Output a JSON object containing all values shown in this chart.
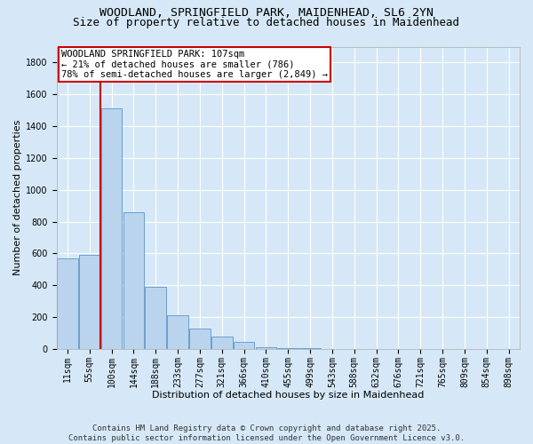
{
  "title_line1": "WOODLAND, SPRINGFIELD PARK, MAIDENHEAD, SL6 2YN",
  "title_line2": "Size of property relative to detached houses in Maidenhead",
  "xlabel": "Distribution of detached houses by size in Maidenhead",
  "ylabel": "Number of detached properties",
  "bar_color": "#bad4ee",
  "bar_edge_color": "#6b9fcc",
  "background_color": "#d6e8f7",
  "grid_color": "#ffffff",
  "vline_color": "#cc0000",
  "vline_x": 2,
  "annotation_text": "WOODLAND SPRINGFIELD PARK: 107sqm\n← 21% of detached houses are smaller (786)\n78% of semi-detached houses are larger (2,849) →",
  "annotation_box_color": "#ffffff",
  "annotation_box_edge": "#cc0000",
  "categories": [
    "11sqm",
    "55sqm",
    "100sqm",
    "144sqm",
    "188sqm",
    "233sqm",
    "277sqm",
    "321sqm",
    "366sqm",
    "410sqm",
    "455sqm",
    "499sqm",
    "543sqm",
    "588sqm",
    "632sqm",
    "676sqm",
    "721sqm",
    "765sqm",
    "809sqm",
    "854sqm",
    "898sqm"
  ],
  "values": [
    570,
    590,
    1510,
    860,
    390,
    210,
    130,
    80,
    45,
    10,
    8,
    3,
    0,
    0,
    2,
    0,
    1,
    0,
    0,
    0,
    0
  ],
  "ylim": [
    0,
    1900
  ],
  "yticks": [
    0,
    200,
    400,
    600,
    800,
    1000,
    1200,
    1400,
    1600,
    1800
  ],
  "footer": "Contains HM Land Registry data © Crown copyright and database right 2025.\nContains public sector information licensed under the Open Government Licence v3.0.",
  "title_fontsize": 9.5,
  "subtitle_fontsize": 9,
  "axis_label_fontsize": 8,
  "tick_fontsize": 7,
  "annotation_fontsize": 7.5,
  "footer_fontsize": 6.5
}
